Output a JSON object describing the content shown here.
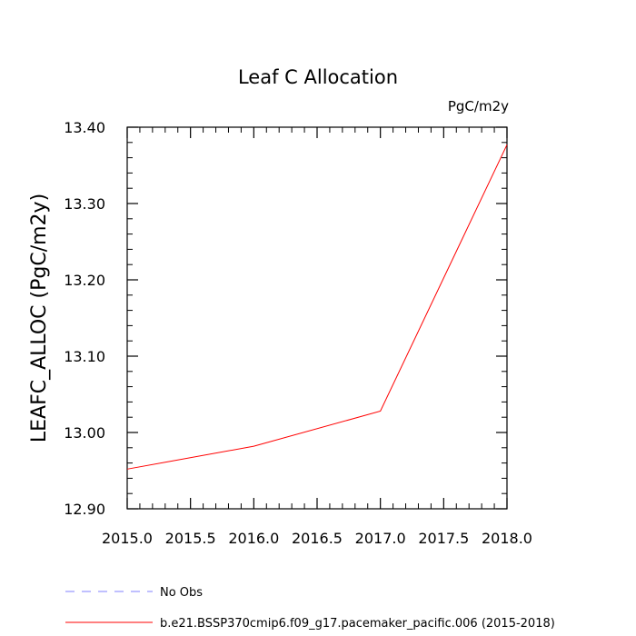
{
  "chart_data": {
    "type": "line",
    "title": "Leaf C Allocation",
    "units_label": "PgC/m2y",
    "xlabel": "",
    "ylabel": "LEAFC_ALLOC  (PgC/m2y)",
    "xlim": [
      2015.0,
      2018.0
    ],
    "ylim": [
      12.9,
      13.4
    ],
    "x_ticks": [
      "2015.0",
      "2015.5",
      "2016.0",
      "2016.5",
      "2017.0",
      "2017.5",
      "2018.0"
    ],
    "y_ticks": [
      "12.90",
      "13.00",
      "13.10",
      "13.20",
      "13.30",
      "13.40"
    ],
    "grid": false,
    "series": [
      {
        "name": "b.e21.BSSP370cmip6.f09_g17.pacemaker_pacific.006 (2015-2018)",
        "color": "#ff0000",
        "x": [
          2015,
          2016,
          2017,
          2018
        ],
        "values": [
          12.952,
          12.982,
          13.028,
          13.377
        ]
      }
    ],
    "legend": [
      {
        "label": "No Obs",
        "color": "#8080ff",
        "style": "dashed"
      },
      {
        "label": "b.e21.BSSP370cmip6.f09_g17.pacemaker_pacific.006 (2015-2018)",
        "color": "#ff0000",
        "style": "solid"
      }
    ],
    "legend_position": "bottom"
  }
}
